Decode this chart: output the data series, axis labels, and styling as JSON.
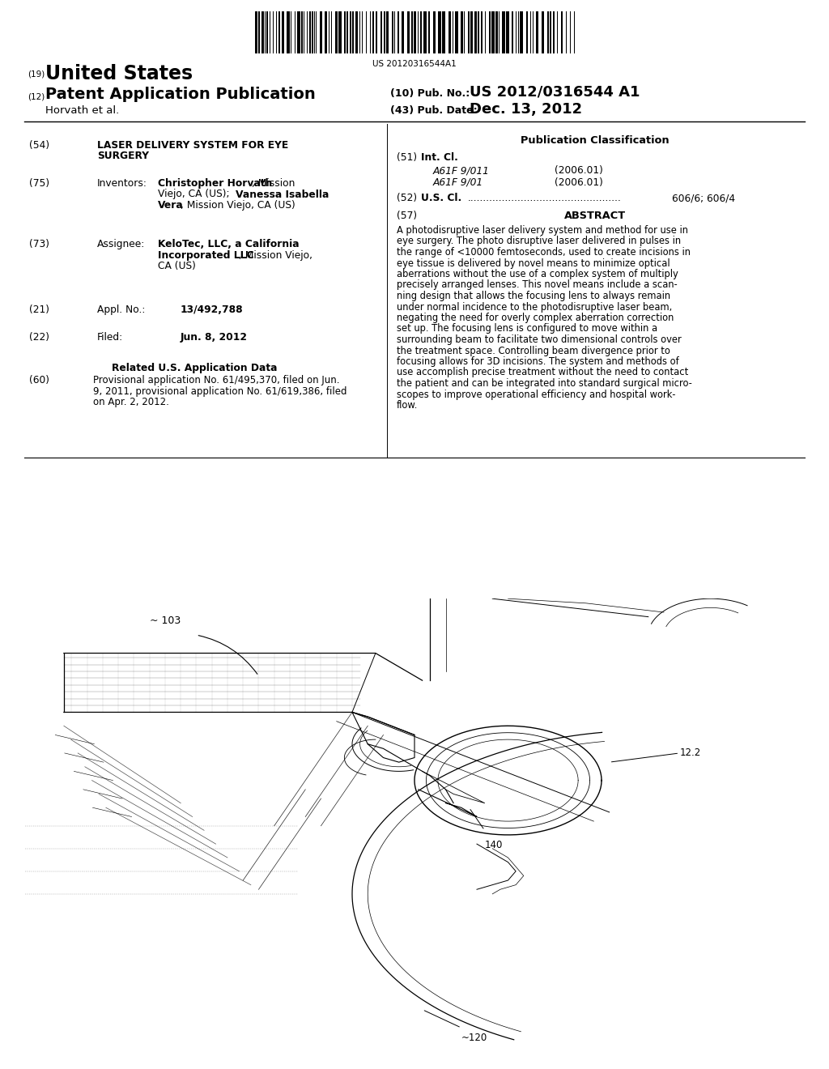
{
  "background_color": "#ffffff",
  "barcode_text": "US 20120316544A1",
  "header_19": "(19)",
  "header_19_text": "United States",
  "header_12": "(12)",
  "header_12_text": "Patent Application Publication",
  "header_author": "Horvath et al.",
  "header_10_label": "(10) Pub. No.:",
  "header_10_value": "US 2012/0316544 A1",
  "header_43_label": "(43) Pub. Date:",
  "header_43_value": "Dec. 13, 2012",
  "s54_num": "(54)",
  "s54_title_line1": "LASER DELIVERY SYSTEM FOR EYE",
  "s54_title_line2": "SURGERY",
  "s75_num": "(75)",
  "s75_label": "Inventors:",
  "s75_line1_bold": "Christopher Horvath",
  "s75_line1_rest": ", Mission",
  "s75_line2": "Viejo, CA (US); ",
  "s75_line2_bold": "Vanessa Isabella",
  "s75_line3_bold": "Vera",
  "s75_line3_rest": ", Mission Viejo, CA (US)",
  "s73_num": "(73)",
  "s73_label": "Assignee:",
  "s73_line1_bold": "KeloTec, LLC, a California",
  "s73_line2_bold": "Incorporated LLC",
  "s73_line2_rest": ", Mission Viejo,",
  "s73_line3": "CA (US)",
  "s21_num": "(21)",
  "s21_label": "Appl. No.:",
  "s21_value": "13/492,788",
  "s22_num": "(22)",
  "s22_label": "Filed:",
  "s22_value": "Jun. 8, 2012",
  "related_header": "Related U.S. Application Data",
  "s60_num": "(60)",
  "s60_line1": "Provisional application No. 61/495,370, filed on Jun.",
  "s60_line2": "9, 2011, provisional application No. 61/619,386, filed",
  "s60_line3": "on Apr. 2, 2012.",
  "pub_class_header": "Publication Classification",
  "s51_num": "(51)",
  "s51_label": "Int. Cl.",
  "s51_code1": "A61F 9/011",
  "s51_year1": "(2006.01)",
  "s51_code2": "A61F 9/01",
  "s51_year2": "(2006.01)",
  "s52_num": "(52)",
  "s52_label": "U.S. Cl.",
  "s52_dots": ".................................................",
  "s52_value": "606/6; 606/4",
  "s57_num": "(57)",
  "s57_header": "ABSTRACT",
  "abstract_lines": [
    "A photodisruptive laser delivery system and method for use in",
    "eye surgery. The photo disruptive laser delivered in pulses in",
    "the range of <10000 femtoseconds, used to create incisions in",
    "eye tissue is delivered by novel means to minimize optical",
    "aberrations without the use of a complex system of multiply",
    "precisely arranged lenses. This novel means include a scan-",
    "ning design that allows the focusing lens to always remain",
    "under normal incidence to the photodisruptive laser beam,",
    "negating the need for overly complex aberration correction",
    "set up. The focusing lens is configured to move within a",
    "surrounding beam to facilitate two dimensional controls over",
    "the treatment space. Controlling beam divergence prior to",
    "focusing allows for 3D incisions. The system and methods of",
    "use accomplish precise treatment without the need to contact",
    "the patient and can be integrated into standard surgical micro-",
    "scopes to improve operational efficiency and hospital work-",
    "flow."
  ],
  "fig_103": "~ 103",
  "fig_122": "12.2",
  "fig_140": "140",
  "fig_120": "~120"
}
